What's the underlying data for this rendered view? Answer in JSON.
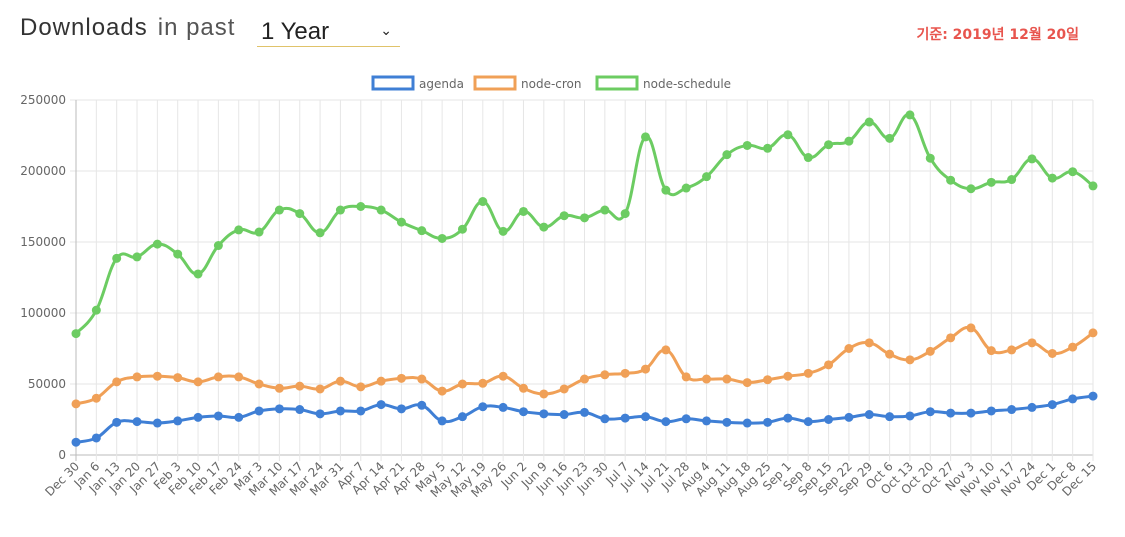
{
  "header": {
    "title": "Downloads",
    "in_past": "in past",
    "period": "1 Year",
    "date_note": "기준: 2019년 12월 20일"
  },
  "chart_data": {
    "type": "line",
    "categories": [
      "Dec 30",
      "Jan 6",
      "Jan 13",
      "Jan 20",
      "Jan 27",
      "Feb 3",
      "Feb 10",
      "Feb 17",
      "Feb 24",
      "Mar 3",
      "Mar 10",
      "Mar 17",
      "Mar 24",
      "Mar 31",
      "Apr 7",
      "Apr 14",
      "Apr 21",
      "Apr 28",
      "May 5",
      "May 12",
      "May 19",
      "May 26",
      "Jun 2",
      "Jun 9",
      "Jun 16",
      "Jun 23",
      "Jun 30",
      "Jul 7",
      "Jul 14",
      "Jul 21",
      "Jul 28",
      "Aug 4",
      "Aug 11",
      "Aug 18",
      "Aug 25",
      "Sep 1",
      "Sep 8",
      "Sep 15",
      "Sep 22",
      "Sep 29",
      "Oct 6",
      "Oct 13",
      "Oct 20",
      "Oct 27",
      "Nov 3",
      "Nov 10",
      "Nov 17",
      "Nov 24",
      "Dec 1",
      "Dec 8",
      "Dec 15"
    ],
    "ylim": [
      0,
      250000
    ],
    "yticks": [
      "0",
      "50000",
      "100000",
      "150000",
      "200000",
      "250000"
    ],
    "grid": true,
    "legend_position": "top",
    "series": [
      {
        "name": "agenda",
        "color": "#3f7fd5",
        "values": [
          9000,
          12000,
          23000,
          23500,
          22500,
          24000,
          26500,
          27500,
          26500,
          31000,
          32500,
          32000,
          29000,
          31000,
          31000,
          35500,
          32500,
          35000,
          24000,
          27000,
          34000,
          33500,
          30500,
          29000,
          28500,
          30000,
          25500,
          26000,
          27000,
          23500,
          25500,
          24000,
          23000,
          22500,
          23000,
          26000,
          23500,
          25000,
          26500,
          28500,
          27000,
          27500,
          30500,
          29500,
          29500,
          31000,
          32000,
          33500,
          35500,
          39500,
          41500
        ]
      },
      {
        "name": "node-cron",
        "color": "#f0a057",
        "values": [
          36000,
          40000,
          51500,
          55000,
          55500,
          54500,
          51500,
          55000,
          55000,
          50000,
          47000,
          48500,
          46500,
          52000,
          48000,
          52000,
          54000,
          53500,
          45000,
          50000,
          50500,
          55500,
          47000,
          43000,
          46500,
          53500,
          56500,
          57500,
          60500,
          74000,
          55000,
          53500,
          53500,
          51000,
          53000,
          55500,
          57500,
          63500,
          75000,
          79000,
          71000,
          67000,
          73000,
          82500,
          89500,
          73500,
          74000,
          79000,
          71500,
          76000,
          86000
        ]
      },
      {
        "name": "node-schedule",
        "color": "#6ccc62",
        "values": [
          85500,
          102000,
          138500,
          139500,
          148500,
          141500,
          127500,
          147500,
          158500,
          157000,
          172500,
          170000,
          156500,
          172500,
          175000,
          172500,
          164000,
          158000,
          152500,
          159000,
          178500,
          157500,
          171500,
          160500,
          168500,
          167000,
          172500,
          170000,
          224000,
          186500,
          188000,
          196000,
          211500,
          218000,
          216000,
          225500,
          209500,
          218500,
          221000,
          234500,
          223000,
          239500,
          209000,
          193500,
          187500,
          192000,
          194000,
          208500,
          195000,
          199500,
          189500
        ]
      }
    ]
  }
}
